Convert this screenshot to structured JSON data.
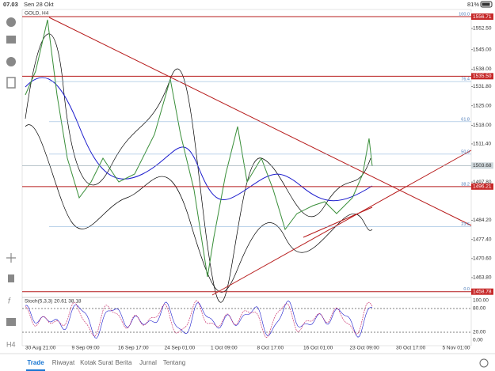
{
  "status": {
    "time": "07.03",
    "date": "Sen 28 Okt",
    "battery": "81%"
  },
  "symbol": "GOLD, H4",
  "price_axis": {
    "ylim": [
      1455,
      1560
    ],
    "ticks": [
      {
        "value": 1552.5,
        "label": "1552.50"
      },
      {
        "value": 1545,
        "label": "1545.00"
      },
      {
        "value": 1538,
        "label": "1538.00"
      },
      {
        "value": 1531.8,
        "label": "1531.80"
      },
      {
        "value": 1525,
        "label": "1525.00"
      },
      {
        "value": 1518,
        "label": "1518.00"
      },
      {
        "value": 1511.4,
        "label": "1511.40"
      },
      {
        "value": 1497.8,
        "label": "1497.80"
      },
      {
        "value": 1484.2,
        "label": "1484.20"
      },
      {
        "value": 1477.4,
        "label": "1477.40"
      },
      {
        "value": 1470.6,
        "label": "1470.60"
      },
      {
        "value": 1463.8,
        "label": "1463.80"
      }
    ],
    "levels": [
      {
        "value": 1556.71,
        "label": "1556.71"
      },
      {
        "value": 1535.5,
        "label": "1535.50"
      },
      {
        "value": 1496.21,
        "label": "1496.21"
      },
      {
        "value": 1458.78,
        "label": "1458.78"
      }
    ],
    "current": {
      "value": 1503.68,
      "label": "1503.68"
    }
  },
  "fibo": [
    {
      "value": 100,
      "label": "100.0"
    },
    {
      "value": 76.4,
      "label": "76.4"
    },
    {
      "value": 61.8,
      "label": "61.8"
    },
    {
      "value": 50,
      "label": "50.0"
    },
    {
      "value": 38.2,
      "label": "38.2"
    },
    {
      "value": 23.6,
      "label": "23.6"
    },
    {
      "value": 0,
      "label": "0.0"
    }
  ],
  "stoch": {
    "label": "Stoch(5,3,3) 20.61 38.18",
    "levels": [
      {
        "value": 100,
        "label": "100.00"
      },
      {
        "value": 80,
        "label": "80.00"
      },
      {
        "value": 20,
        "label": "20.00"
      },
      {
        "value": 0,
        "label": "0.00"
      }
    ]
  },
  "dates": [
    "30 Aug 21:00",
    "9 Sep 09:00",
    "16 Sep 17:00",
    "24 Sep 01:00",
    "1 Oct 09:00",
    "8 Oct 17:00",
    "16 Oct 01:00",
    "23 Oct 09:00",
    "30 Oct 17:00",
    "5 Nov 01:00"
  ],
  "tabs": [
    "Trade",
    "Riwayat",
    "Kotak Surat",
    "Berita",
    "Jurnal",
    "Tentang"
  ]
}
